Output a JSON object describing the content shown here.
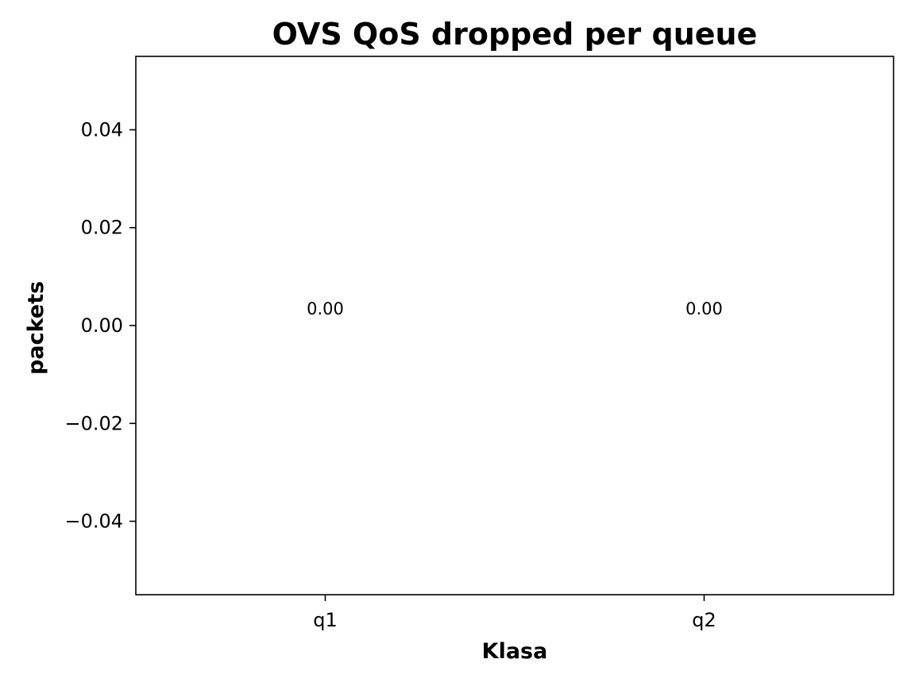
{
  "chart_data": {
    "type": "bar",
    "title": "OVS QoS dropped per queue",
    "xlabel": "Klasa",
    "ylabel": "packets",
    "categories": [
      "q1",
      "q2"
    ],
    "values": [
      0,
      0
    ],
    "data_labels": [
      "0.00",
      "0.00"
    ],
    "ylim": [
      -0.055,
      0.055
    ],
    "yticks": [
      0.04,
      0.02,
      0.0,
      -0.02,
      -0.04
    ],
    "ytick_labels": [
      "0.04",
      "0.02",
      "0.00",
      "−0.02",
      "−0.04"
    ],
    "grid": false,
    "legend": "none",
    "bar_color": "#1f77b4"
  }
}
